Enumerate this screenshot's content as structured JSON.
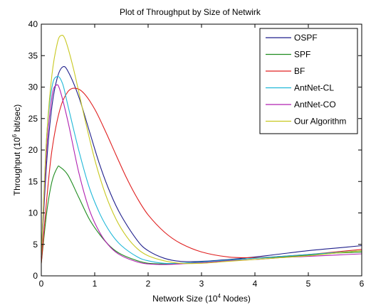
{
  "chart_data": {
    "type": "line",
    "title": "Plot of Throughput by Size of Netwirk",
    "xlabel_prefix": "Network Size (10",
    "xlabel_exp": "4",
    "xlabel_suffix": " Nodes)",
    "ylabel_prefix": "Throughput (10",
    "ylabel_exp": "6",
    "ylabel_suffix": " bit/sec)",
    "xlim": [
      0,
      6
    ],
    "ylim": [
      0,
      40
    ],
    "xticks": [
      0,
      1,
      2,
      3,
      4,
      5,
      6
    ],
    "yticks": [
      0,
      5,
      10,
      15,
      20,
      25,
      30,
      35,
      40
    ],
    "grid": false,
    "legend_position": "top-right",
    "series": [
      {
        "name": "OSPF",
        "color": "#1f1f8c",
        "x": [
          0,
          0.1,
          0.2,
          0.3,
          0.4,
          0.5,
          0.7,
          0.9,
          1.1,
          1.3,
          1.5,
          1.8,
          2.0,
          2.3,
          2.6,
          3.0,
          3.5,
          4.0,
          4.5,
          5.0,
          5.5,
          6.0
        ],
        "y": [
          3,
          18,
          27,
          31.5,
          33.2,
          32.5,
          28.5,
          23,
          17.5,
          13,
          9.5,
          5.6,
          4,
          2.8,
          2.3,
          2.3,
          2.6,
          3.0,
          3.5,
          4.0,
          4.4,
          4.8
        ]
      },
      {
        "name": "SPF",
        "color": "#1f8c1f",
        "x": [
          0,
          0.1,
          0.2,
          0.3,
          0.35,
          0.5,
          0.7,
          0.9,
          1.1,
          1.3,
          1.5,
          1.8,
          2.0,
          2.3,
          2.6,
          3.0,
          3.5,
          4.0,
          4.5,
          5.0,
          5.5,
          6.0
        ],
        "y": [
          2,
          10,
          15,
          17.2,
          17.3,
          16,
          12.5,
          9,
          6.5,
          4.6,
          3.4,
          2.4,
          2.0,
          1.9,
          2.0,
          2.2,
          2.5,
          2.8,
          3.0,
          3.3,
          3.6,
          3.8
        ]
      },
      {
        "name": "BF",
        "color": "#e02020",
        "x": [
          0,
          0.1,
          0.2,
          0.35,
          0.5,
          0.65,
          0.8,
          1.0,
          1.2,
          1.4,
          1.6,
          1.8,
          2.0,
          2.3,
          2.6,
          3.0,
          3.5,
          4.0,
          4.5,
          5.0,
          5.5,
          6.0
        ],
        "y": [
          2,
          12,
          20,
          26.5,
          29.3,
          29.8,
          29,
          26.5,
          23,
          19.2,
          15.5,
          12.3,
          9.7,
          7,
          5.2,
          3.8,
          3.0,
          2.9,
          3.1,
          3.4,
          3.8,
          4.2
        ]
      },
      {
        "name": "AntNet-CL",
        "color": "#20b8d8",
        "x": [
          0,
          0.1,
          0.2,
          0.3,
          0.4,
          0.5,
          0.7,
          0.9,
          1.1,
          1.3,
          1.5,
          1.8,
          2.0,
          2.3,
          2.6,
          3.0,
          3.5,
          4.0,
          4.5,
          5.0,
          5.5,
          6.0
        ],
        "y": [
          3,
          22,
          30,
          31.7,
          30.5,
          27,
          20,
          14,
          9.8,
          6.8,
          4.8,
          3.0,
          2.4,
          2.0,
          2.0,
          2.2,
          2.5,
          2.8,
          3.1,
          3.4,
          3.7,
          4.0
        ]
      },
      {
        "name": "AntNet-CO",
        "color": "#b020b0",
        "x": [
          0,
          0.1,
          0.2,
          0.28,
          0.35,
          0.5,
          0.7,
          0.9,
          1.1,
          1.3,
          1.5,
          1.8,
          2.0,
          2.3,
          2.6,
          3.0,
          3.5,
          4.0,
          4.5,
          5.0,
          5.5,
          6.0
        ],
        "y": [
          3,
          20,
          28.5,
          30.3,
          29.5,
          24.5,
          16.5,
          10.5,
          6.8,
          4.5,
          3.2,
          2.2,
          1.9,
          1.8,
          1.9,
          2.1,
          2.4,
          2.6,
          2.9,
          3.1,
          3.3,
          3.5
        ]
      },
      {
        "name": "Our Algorithm",
        "color": "#c8c820",
        "x": [
          0,
          0.1,
          0.2,
          0.3,
          0.37,
          0.45,
          0.6,
          0.8,
          1.0,
          1.2,
          1.4,
          1.6,
          1.8,
          2.0,
          2.3,
          2.6,
          3.0,
          3.5,
          4.0,
          4.5,
          5.0,
          5.5,
          6.0
        ],
        "y": [
          3,
          22,
          32,
          37,
          38.2,
          37.5,
          33,
          25.5,
          18.5,
          13,
          9,
          6.2,
          4.3,
          3.2,
          2.4,
          2.0,
          2.0,
          2.3,
          2.6,
          2.9,
          3.2,
          3.6,
          4.0
        ]
      }
    ]
  }
}
